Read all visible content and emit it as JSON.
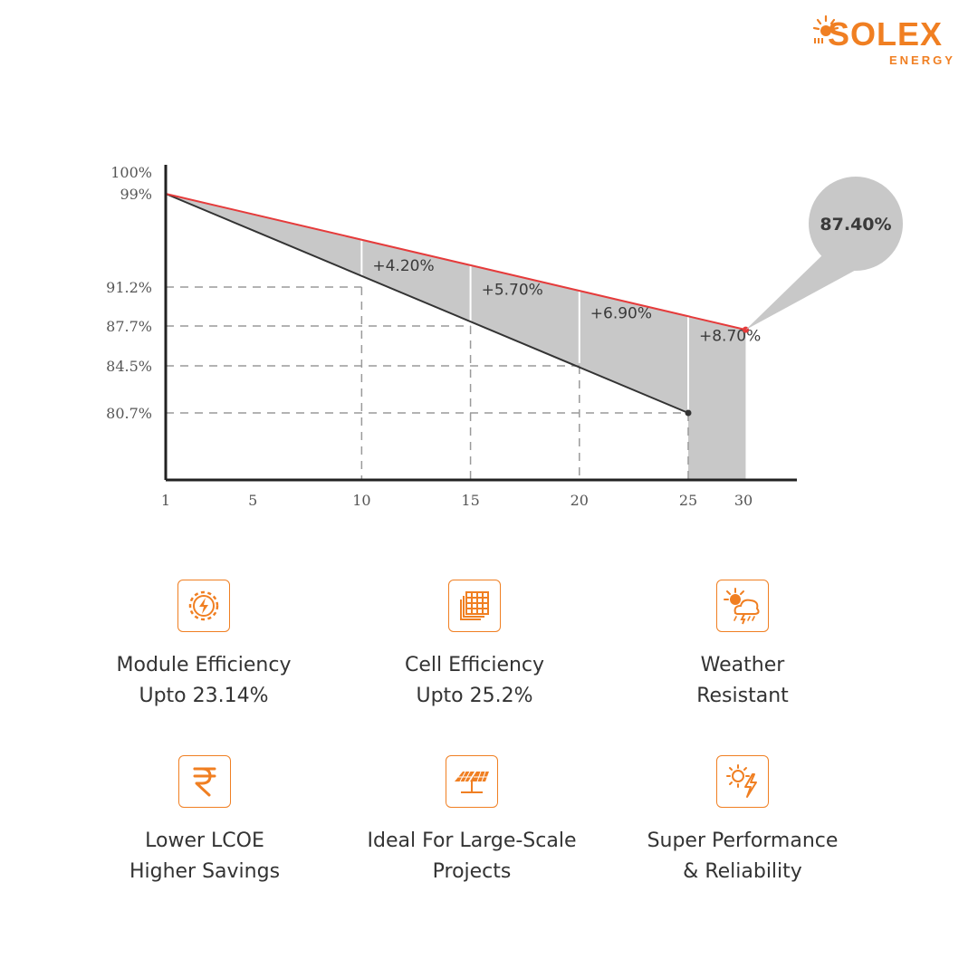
{
  "brand": {
    "name": "SOLEX",
    "subtitle": "ENERGY",
    "accent": "#f07f22"
  },
  "chart_data": {
    "type": "area",
    "y_ticks": [
      "100%",
      "99%",
      "91.2%",
      "87.7%",
      "84.5%",
      "80.7%"
    ],
    "y_tick_values": [
      100,
      99,
      91.2,
      87.7,
      84.5,
      80.7
    ],
    "x_ticks": [
      "1",
      "5",
      "10",
      "15",
      "20",
      "25",
      "30"
    ],
    "x_tick_values": [
      1,
      5,
      10,
      15,
      20,
      25,
      30
    ],
    "series": [
      {
        "values": [
          [
            1,
            99
          ],
          [
            25,
            80.7
          ]
        ],
        "color": "#333333"
      },
      {
        "values": [
          [
            1,
            99
          ],
          [
            30.2,
            87.4
          ]
        ],
        "color": "#e53b3b"
      }
    ],
    "reference_points": [
      {
        "x": 10,
        "y": 91.2
      },
      {
        "x": 15,
        "y": 87.7
      },
      {
        "x": 20,
        "y": 84.5
      },
      {
        "x": 25,
        "y": 80.7
      }
    ],
    "annotations": [
      "+4.20%",
      "+5.70%",
      "+6.90%",
      "+8.70%"
    ],
    "end_callout": "87.40%",
    "fill_color": "#c8c8c8",
    "grid": "dashed reference lines"
  },
  "features": [
    {
      "icon": "gear-bolt-icon",
      "lines": [
        "Module Efficiency",
        "Upto 23.14%"
      ]
    },
    {
      "icon": "solar-cell-icon",
      "lines": [
        "Cell Efficiency",
        "Upto 25.2%"
      ]
    },
    {
      "icon": "weather-icon",
      "lines": [
        "Weather",
        "Resistant"
      ]
    },
    {
      "icon": "rupee-icon",
      "lines": [
        "Lower LCOE",
        "Higher Savings"
      ]
    },
    {
      "icon": "solar-array-icon",
      "lines": [
        "Ideal For Large-Scale",
        "Projects"
      ]
    },
    {
      "icon": "sun-bolt-icon",
      "lines": [
        "Super Performance",
        "& Reliability"
      ]
    }
  ]
}
